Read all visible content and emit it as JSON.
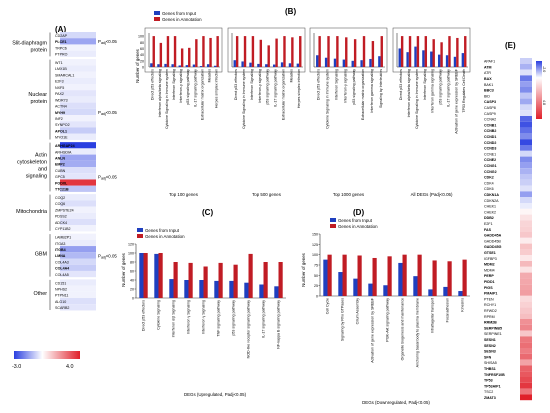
{
  "panel_a": {
    "letter": "(A)",
    "groups": [
      {
        "label": "Slit-diaphragm protein",
        "genes": [
          "CD2AP",
          "PLCE1",
          "TRPC6",
          "PTPRO"
        ],
        "bold": [
          "PLCE1"
        ],
        "pvalue": "P_adj<0.05",
        "pvalue_at": 1
      },
      {
        "label": "Nuclear protein",
        "genes": [
          "WT1",
          "LMX1B",
          "SMARCAL1",
          "E2F3",
          "NXF5",
          "PAX2",
          "WDR73",
          "ACTN4",
          "MYH9",
          "INF2",
          "SYNPO2",
          "APOL1",
          "MYO1E"
        ],
        "bold": [
          "MYH9",
          "APOL1"
        ],
        "pvalue": "P_adj<0.05",
        "pvalue_at": 8
      },
      {
        "label": "Actin cytoskeleton and signaling",
        "genes": [
          "ARHGAP24",
          "ARHGDIA",
          "ANLN",
          "EMP2",
          "CUBN",
          "GPC5",
          "PODXL",
          "TTC21B"
        ],
        "bold": [
          "ARHGAP24",
          "ANLN",
          "EMP2",
          "PODXL",
          "TTC21B"
        ],
        "pvalue": "P_adj<0.05",
        "pvalue_at": 5
      },
      {
        "label": "Mitochondria",
        "genes": [
          "COQ2",
          "COQ6",
          "ZMPSTE24",
          "PDSS2",
          "ADCK4",
          "CYP11B2"
        ],
        "bold": [],
        "pvalue": "",
        "pvalue_at": -1
      },
      {
        "label": "GBM",
        "genes": [
          "LAMB2P1",
          "ITGA3",
          "ITGB4",
          "LMNA",
          "COL4A3",
          "COL4A4",
          "COL4A5"
        ],
        "bold": [
          "ITGB4",
          "LMNA",
          "COL4A4"
        ],
        "pvalue": "P_adj<0.05",
        "pvalue_at": 3
      },
      {
        "label": "Other",
        "genes": [
          "CD151",
          "NPHS2",
          "PTPN11",
          "ALG10",
          "SCARB2"
        ],
        "bold": [],
        "pvalue": "",
        "pvalue_at": -1
      }
    ],
    "values": [
      -0.6,
      -1.4,
      -0.2,
      -0.3,
      -0.2,
      -0.3,
      -0.2,
      -0.3,
      -0.2,
      -0.4,
      -0.3,
      -0.5,
      -0.6,
      -0.2,
      -0.4,
      -0.8,
      -0.3,
      -3.0,
      -0.3,
      -1.4,
      -1.3,
      -0.5,
      -0.4,
      3.6,
      -0.9,
      -0.3,
      -0.5,
      -0.2,
      -0.3,
      -0.5,
      -0.2,
      -0.2,
      -0.3,
      -1.5,
      -1.1,
      -0.6,
      -0.8,
      -0.4,
      -0.3,
      -0.2,
      -0.2,
      -0.5,
      -0.4
    ],
    "colorbar": {
      "min": "-3.0",
      "max": "4.0"
    }
  },
  "panel_b": {
    "letter": "(B)",
    "legend": [
      "Genes from Input",
      "Genes in Annotation"
    ],
    "ylabel": "Number of genes",
    "groups": [
      {
        "title": "Top 100 genes",
        "categories": [
          "Direct p53 effectors",
          "Interferon alpha/beta signaling",
          "Cytokine Signaling in Immune system",
          "Interferon Signaling",
          "Interferon-γ signaling",
          "p53 signaling pathway",
          "IL-17 signaling pathway",
          "Extracellular matrix organization",
          "Measles",
          "Herpes simplex infection"
        ],
        "input": [
          12,
          9,
          10,
          9,
          5,
          6,
          8,
          3,
          9,
          4
        ],
        "annotation": [
          100,
          78,
          100,
          100,
          60,
          62,
          90,
          100,
          94,
          100
        ]
      },
      {
        "title": "Top 500 genes",
        "categories": [
          "Direct p53 effectors",
          "Cytokine Signaling in Immune system",
          "Interferon Signaling",
          "Interferon-γ signaling",
          "p53 signaling pathway",
          "IL-17 signaling pathway",
          "Extracellular matrix organization",
          "Measles",
          "Herpes simplex infection"
        ],
        "input": [
          22,
          18,
          14,
          10,
          9,
          8,
          15,
          12,
          11
        ],
        "annotation": [
          100,
          100,
          100,
          88,
          70,
          92,
          100,
          96,
          100
        ]
      },
      {
        "title": "Top 1000 genes",
        "categories": [
          "Direct p53 effectors",
          "Cytokine Signaling in Immune system",
          "Interferon Signaling",
          "Interferon-γ signaling",
          "p53 signaling pathway",
          "Extracellular matrix organization",
          "Interferon gamma signaling",
          "Signaling by Interleukins"
        ],
        "input": [
          38,
          30,
          27,
          24,
          20,
          22,
          26,
          35
        ],
        "annotation": [
          100,
          100,
          100,
          96,
          90,
          100,
          84,
          100
        ]
      },
      {
        "title": "All DEGs (Padj<0.05)",
        "categories": [
          "Direct p53 effectors",
          "Interferon alpha/beta signaling",
          "Cytokine Signaling in Immune system",
          "Interferon Signaling",
          "Interferon gamma signaling",
          "p53 signaling pathway",
          "IL-17 signaling pathway",
          "Activation of gene expression by SREBF",
          "TP53 Regulates Cell Death"
        ],
        "input": [
          60,
          48,
          66,
          54,
          50,
          40,
          38,
          33,
          45
        ],
        "annotation": [
          100,
          100,
          100,
          100,
          90,
          80,
          100,
          94,
          100
        ]
      }
    ]
  },
  "panel_c": {
    "letter": "(C)",
    "legend": [
      "Genes from Input",
      "Genes in Annotation"
    ],
    "ylabel": "Number of genes",
    "xlabel": "DEGs (Upregulated, Padj<0.05)",
    "categories": [
      "Direct p53 effectors",
      "Cytokine Signaling",
      "Interferon α/β Signaling",
      "Interferon γ Signaling",
      "Interferon γ Signaling",
      "TNF signaling pathway",
      "p53 signaling pathway",
      "NOD-like receptor signaling pathway",
      "IL-17 signaling pathway",
      "NF-kappa B signaling pathway"
    ],
    "input": [
      100,
      98,
      42,
      40,
      40,
      38,
      38,
      34,
      30,
      26
    ],
    "annotation": [
      100,
      100,
      80,
      78,
      70,
      78,
      74,
      98,
      80,
      80
    ],
    "ylim": [
      0,
      120
    ]
  },
  "panel_d": {
    "letter": "(D)",
    "legend": [
      "Genes from Input",
      "Genes in Annotation"
    ],
    "ylabel": "Number of genes",
    "xlabel": "DEGs (Downregulated, Padj<0.05)",
    "categories": [
      "Cell Cycle",
      "Signaling by Rho GTPases",
      "Cilium Assembly",
      "Activation of gene expression by SREBF",
      "PI3K-Akt signaling pathway",
      "Organelle biogenesis and maintenance",
      "Anchoring basal body to plasma membrane",
      "Intraflagellar transport",
      "Focal adhesion",
      "Kinesins"
    ],
    "input": [
      88,
      58,
      42,
      30,
      26,
      80,
      48,
      16,
      22,
      12
    ],
    "annotation": [
      100,
      100,
      98,
      92,
      96,
      100,
      100,
      86,
      84,
      88
    ],
    "ylim": [
      0,
      150
    ]
  },
  "panel_e": {
    "letter": "(E)",
    "genes": [
      "APAF1",
      "ATM",
      "ATR",
      "BAX",
      "BAK1",
      "BBC3",
      "BID",
      "CASP3",
      "CASP8",
      "CASP9",
      "CCNA2",
      "CCNB1",
      "CCNB2",
      "CCND1",
      "CCND2",
      "CCND3",
      "CCNE1",
      "CCNE2",
      "CCNG1",
      "CCNG2",
      "CDK2",
      "CDK4",
      "CDK6",
      "CDKN1A",
      "CDKN2A",
      "CHEK1",
      "CHEK2",
      "DDB2",
      "E2F1",
      "FAS",
      "GADD45A",
      "GADD45B",
      "GADD45G",
      "GTSE1",
      "IGFBP3",
      "MDM2",
      "MDM4",
      "PERP",
      "PIDD1",
      "PIGS",
      "PMAIP1",
      "PTEN",
      "RCHY1",
      "RFWD2",
      "RPRM",
      "RRM2B",
      "SERPINB5",
      "SERPINE1",
      "SESN1",
      "SESN2",
      "SESN3",
      "SFN",
      "SHISA5",
      "THBS1",
      "TNFRSF10B",
      "TP53",
      "TP53AIP1",
      "TSC2",
      "ZMAT3"
    ],
    "bold": [
      "ATM",
      "BAX",
      "BBC3",
      "CASP3",
      "CCNB1",
      "CCNB2",
      "CCND1",
      "CCND2",
      "CCND3",
      "CCNE2",
      "CCNG1",
      "CCNG2",
      "CDK2",
      "CDKN1A",
      "DDB2",
      "FAS",
      "GADD45A",
      "GADD45G",
      "GTSE1",
      "MDM2",
      "PERP",
      "PIDD1",
      "PIGS",
      "PMAIP1",
      "RRM2B",
      "SERPINB5",
      "SESN1",
      "SESN2",
      "SESN3",
      "SFN",
      "THBS1",
      "TNFRSF10B",
      "TP53",
      "TP53AIP1",
      "ZMAT3"
    ],
    "values": [
      -0.5,
      -0.8,
      -0.3,
      -1.4,
      -1.0,
      -1.2,
      -0.6,
      -0.9,
      -0.4,
      -0.3,
      -1.6,
      -1.8,
      -1.5,
      -1.2,
      -1.9,
      -1.4,
      -0.4,
      -1.2,
      -1.0,
      -0.8,
      -0.6,
      -0.5,
      -0.3,
      -1.0,
      -0.4,
      -0.2,
      0.2,
      0.6,
      0.9,
      1.0,
      1.2,
      0.4,
      1.3,
      1.1,
      0.5,
      1.5,
      0.6,
      1.8,
      1.9,
      2.0,
      2.1,
      0.8,
      1.0,
      1.2,
      1.4,
      2.4,
      2.6,
      1.2,
      2.9,
      3.1,
      2.8,
      3.2,
      2.0,
      3.4,
      3.6,
      3.9,
      4.3,
      3.0,
      4.8
    ],
    "colorbar": {
      "min": "-2.0",
      "max": "4.8"
    }
  },
  "colors": {
    "input": "#1f3fbf",
    "annotation": "#c01c24",
    "neg": "#2a3fe0",
    "pos": "#e0202a"
  }
}
